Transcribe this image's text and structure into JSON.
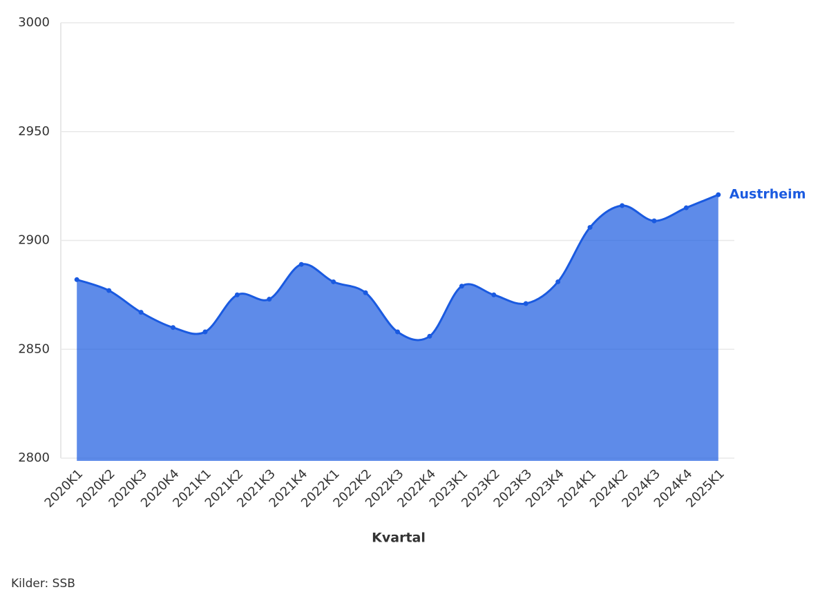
{
  "chart_data": {
    "type": "area",
    "x_label": "Kvartal",
    "source": "Kilder: SSB",
    "categories": [
      "2020K1",
      "2020K2",
      "2020K3",
      "2020K4",
      "2021K1",
      "2021K2",
      "2021K3",
      "2021K4",
      "2022K1",
      "2022K2",
      "2022K3",
      "2022K4",
      "2023K1",
      "2023K2",
      "2023K3",
      "2023K4",
      "2024K1",
      "2024K2",
      "2024K3",
      "2024K4",
      "2025K1"
    ],
    "series": [
      {
        "name": "Austrheim",
        "color": "#1a5ae0",
        "values": [
          2882,
          2877,
          2867,
          2860,
          2858,
          2875,
          2873,
          2889,
          2881,
          2876,
          2858,
          2856,
          2879,
          2875,
          2871,
          2881,
          2906,
          2916,
          2909,
          2915,
          2921
        ]
      }
    ],
    "ylim": [
      2800,
      3000
    ],
    "yticks": [
      2800,
      2850,
      2900,
      2950,
      3000
    ],
    "grid": true
  }
}
